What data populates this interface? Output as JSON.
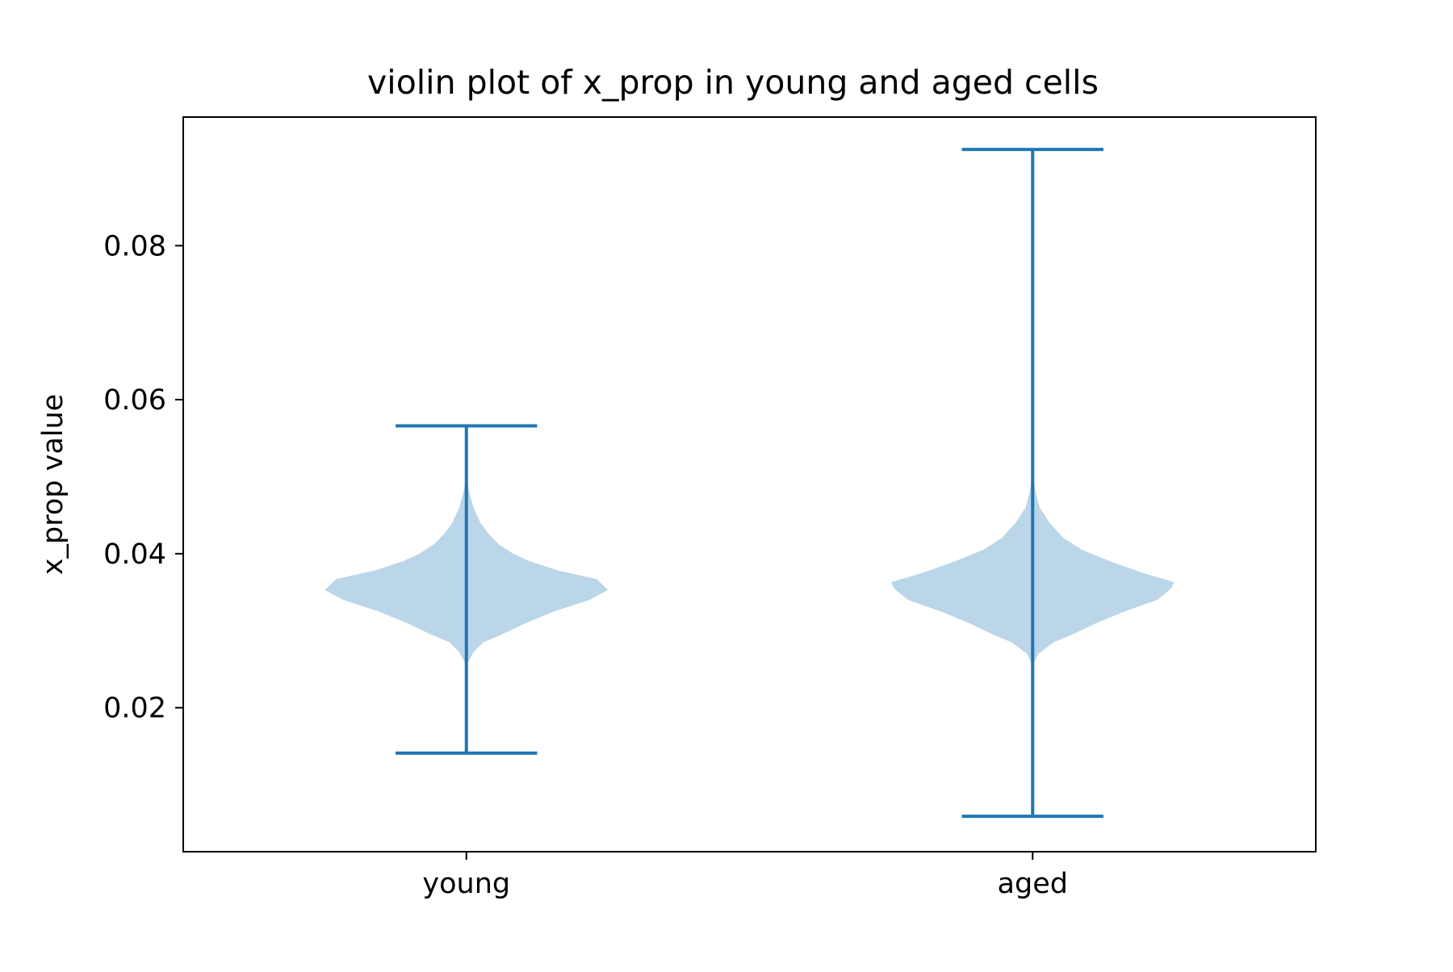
{
  "chart_data": {
    "type": "violin",
    "title": "violin plot of x_prop in young and aged cells",
    "xlabel": "",
    "ylabel": "x_prop value",
    "categories": [
      "young",
      "aged"
    ],
    "yticks": [
      0.02,
      0.04,
      0.06,
      0.08
    ],
    "ytick_labels": [
      "0.02",
      "0.04",
      "0.06",
      "0.08"
    ],
    "ylim": [
      0.0013,
      0.0967
    ],
    "grid": false,
    "legend": "none",
    "body_color": "#bbd6e8",
    "line_color": "#1f77b4",
    "series": [
      {
        "category": "young",
        "min": 0.0141,
        "max": 0.0566,
        "profile": [
          {
            "y": 0.0258,
            "w": 0.01
          },
          {
            "y": 0.0272,
            "w": 0.05
          },
          {
            "y": 0.0285,
            "w": 0.12
          },
          {
            "y": 0.0295,
            "w": 0.25
          },
          {
            "y": 0.031,
            "w": 0.42
          },
          {
            "y": 0.0325,
            "w": 0.62
          },
          {
            "y": 0.034,
            "w": 0.87
          },
          {
            "y": 0.0353,
            "w": 1.0
          },
          {
            "y": 0.0367,
            "w": 0.92
          },
          {
            "y": 0.0378,
            "w": 0.65
          },
          {
            "y": 0.039,
            "w": 0.45
          },
          {
            "y": 0.04,
            "w": 0.33
          },
          {
            "y": 0.0412,
            "w": 0.23
          },
          {
            "y": 0.0425,
            "w": 0.16
          },
          {
            "y": 0.044,
            "w": 0.1
          },
          {
            "y": 0.046,
            "w": 0.05
          },
          {
            "y": 0.048,
            "w": 0.02
          },
          {
            "y": 0.05,
            "w": 0.0
          }
        ]
      },
      {
        "category": "aged",
        "min": 0.0059,
        "max": 0.0925,
        "profile": [
          {
            "y": 0.0255,
            "w": 0.0
          },
          {
            "y": 0.027,
            "w": 0.04
          },
          {
            "y": 0.0285,
            "w": 0.15
          },
          {
            "y": 0.0295,
            "w": 0.28
          },
          {
            "y": 0.031,
            "w": 0.45
          },
          {
            "y": 0.0325,
            "w": 0.65
          },
          {
            "y": 0.034,
            "w": 0.88
          },
          {
            "y": 0.0355,
            "w": 0.98
          },
          {
            "y": 0.0363,
            "w": 1.0
          },
          {
            "y": 0.0375,
            "w": 0.78
          },
          {
            "y": 0.039,
            "w": 0.55
          },
          {
            "y": 0.0405,
            "w": 0.35
          },
          {
            "y": 0.042,
            "w": 0.22
          },
          {
            "y": 0.044,
            "w": 0.12
          },
          {
            "y": 0.046,
            "w": 0.05
          },
          {
            "y": 0.048,
            "w": 0.02
          },
          {
            "y": 0.0505,
            "w": 0.0
          }
        ]
      }
    ]
  }
}
